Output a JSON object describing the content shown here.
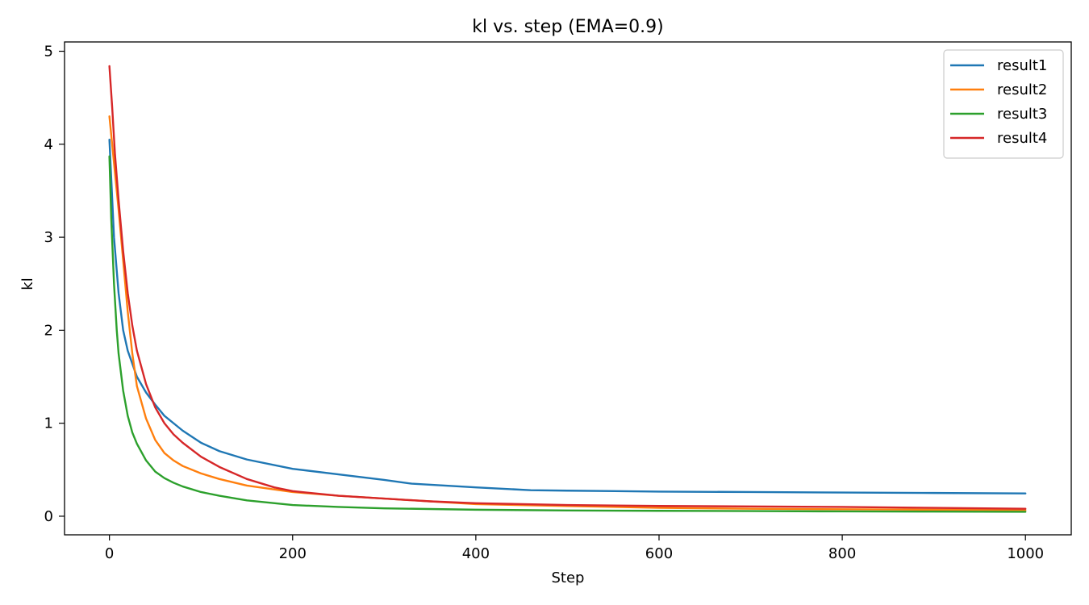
{
  "chart_data": {
    "type": "line",
    "title": "kl vs. step (EMA=0.9)",
    "xlabel": "Step",
    "ylabel": "kl",
    "xlim": [
      -49,
      1050
    ],
    "ylim": [
      -0.2,
      5.1
    ],
    "xticks": [
      0,
      200,
      400,
      600,
      800,
      1000
    ],
    "yticks": [
      0,
      1,
      2,
      3,
      4,
      5
    ],
    "grid": false,
    "legend_position": "top-right",
    "series": [
      {
        "name": "result1",
        "color": "#1f77b4",
        "points": [
          [
            0,
            4.05
          ],
          [
            5,
            3.0
          ],
          [
            10,
            2.4
          ],
          [
            15,
            2.0
          ],
          [
            20,
            1.78
          ],
          [
            30,
            1.5
          ],
          [
            40,
            1.33
          ],
          [
            50,
            1.2
          ],
          [
            60,
            1.08
          ],
          [
            80,
            0.92
          ],
          [
            100,
            0.79
          ],
          [
            120,
            0.7
          ],
          [
            150,
            0.61
          ],
          [
            200,
            0.51
          ],
          [
            250,
            0.45
          ],
          [
            300,
            0.39
          ],
          [
            330,
            0.35
          ],
          [
            400,
            0.31
          ],
          [
            460,
            0.28
          ],
          [
            500,
            0.275
          ],
          [
            600,
            0.265
          ],
          [
            700,
            0.26
          ],
          [
            800,
            0.255
          ],
          [
            900,
            0.25
          ],
          [
            1000,
            0.245
          ]
        ]
      },
      {
        "name": "result2",
        "color": "#ff7f0e",
        "points": [
          [
            0,
            4.3
          ],
          [
            5,
            3.8
          ],
          [
            10,
            3.3
          ],
          [
            15,
            2.75
          ],
          [
            20,
            2.2
          ],
          [
            25,
            1.75
          ],
          [
            30,
            1.4
          ],
          [
            40,
            1.05
          ],
          [
            50,
            0.82
          ],
          [
            60,
            0.68
          ],
          [
            70,
            0.6
          ],
          [
            80,
            0.54
          ],
          [
            100,
            0.46
          ],
          [
            120,
            0.4
          ],
          [
            150,
            0.33
          ],
          [
            200,
            0.26
          ],
          [
            250,
            0.22
          ],
          [
            300,
            0.19
          ],
          [
            350,
            0.16
          ],
          [
            400,
            0.13
          ],
          [
            500,
            0.11
          ],
          [
            600,
            0.09
          ],
          [
            700,
            0.08
          ],
          [
            800,
            0.075
          ],
          [
            900,
            0.07
          ],
          [
            1000,
            0.065
          ]
        ]
      },
      {
        "name": "result3",
        "color": "#2ca02c",
        "points": [
          [
            0,
            3.87
          ],
          [
            2,
            3.2
          ],
          [
            5,
            2.5
          ],
          [
            8,
            2.0
          ],
          [
            10,
            1.75
          ],
          [
            15,
            1.35
          ],
          [
            20,
            1.08
          ],
          [
            25,
            0.9
          ],
          [
            30,
            0.78
          ],
          [
            40,
            0.6
          ],
          [
            50,
            0.48
          ],
          [
            60,
            0.41
          ],
          [
            70,
            0.36
          ],
          [
            80,
            0.32
          ],
          [
            100,
            0.26
          ],
          [
            120,
            0.22
          ],
          [
            150,
            0.17
          ],
          [
            200,
            0.12
          ],
          [
            250,
            0.1
          ],
          [
            300,
            0.085
          ],
          [
            400,
            0.07
          ],
          [
            500,
            0.062
          ],
          [
            600,
            0.058
          ],
          [
            700,
            0.055
          ],
          [
            800,
            0.052
          ],
          [
            900,
            0.05
          ],
          [
            1000,
            0.048
          ]
        ]
      },
      {
        "name": "result4",
        "color": "#d62728",
        "points": [
          [
            0,
            4.84
          ],
          [
            3,
            4.4
          ],
          [
            6,
            3.9
          ],
          [
            10,
            3.4
          ],
          [
            15,
            2.85
          ],
          [
            20,
            2.4
          ],
          [
            25,
            2.05
          ],
          [
            30,
            1.78
          ],
          [
            40,
            1.42
          ],
          [
            50,
            1.17
          ],
          [
            60,
            1.0
          ],
          [
            70,
            0.88
          ],
          [
            80,
            0.79
          ],
          [
            100,
            0.64
          ],
          [
            120,
            0.53
          ],
          [
            150,
            0.4
          ],
          [
            180,
            0.31
          ],
          [
            200,
            0.27
          ],
          [
            250,
            0.22
          ],
          [
            300,
            0.19
          ],
          [
            350,
            0.16
          ],
          [
            400,
            0.14
          ],
          [
            500,
            0.12
          ],
          [
            600,
            0.11
          ],
          [
            700,
            0.105
          ],
          [
            800,
            0.1
          ],
          [
            900,
            0.09
          ],
          [
            1000,
            0.08
          ]
        ]
      }
    ]
  }
}
